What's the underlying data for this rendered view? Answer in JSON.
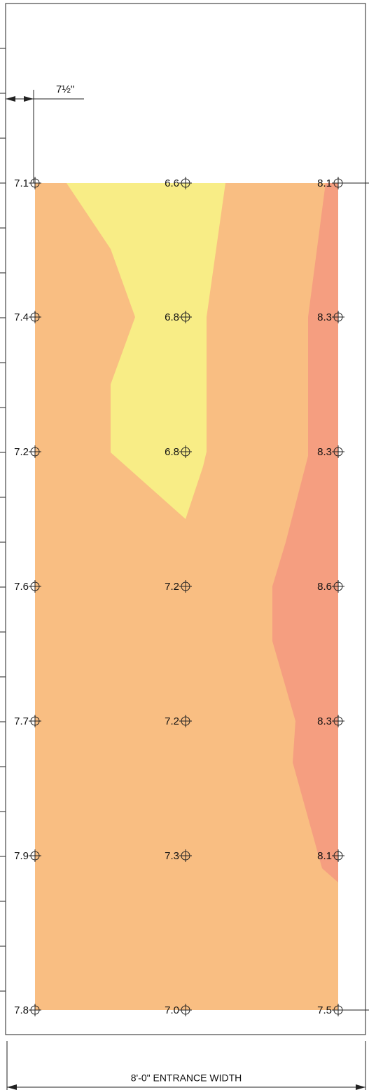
{
  "dimensions": {
    "setback": "7½\"",
    "width": "8'-0\" ENTRANCE WIDTH"
  },
  "grid": {
    "rows": [
      [
        "7.1",
        "6.6",
        "8.1"
      ],
      [
        "7.4",
        "6.8",
        "8.3"
      ],
      [
        "7.2",
        "6.8",
        "8.3"
      ],
      [
        "7.6",
        "7.2",
        "8.6"
      ],
      [
        "7.7",
        "7.2",
        "8.3"
      ],
      [
        "7.9",
        "7.3",
        "8.1"
      ],
      [
        "7.8",
        "7.0",
        "7.5"
      ]
    ]
  }
}
